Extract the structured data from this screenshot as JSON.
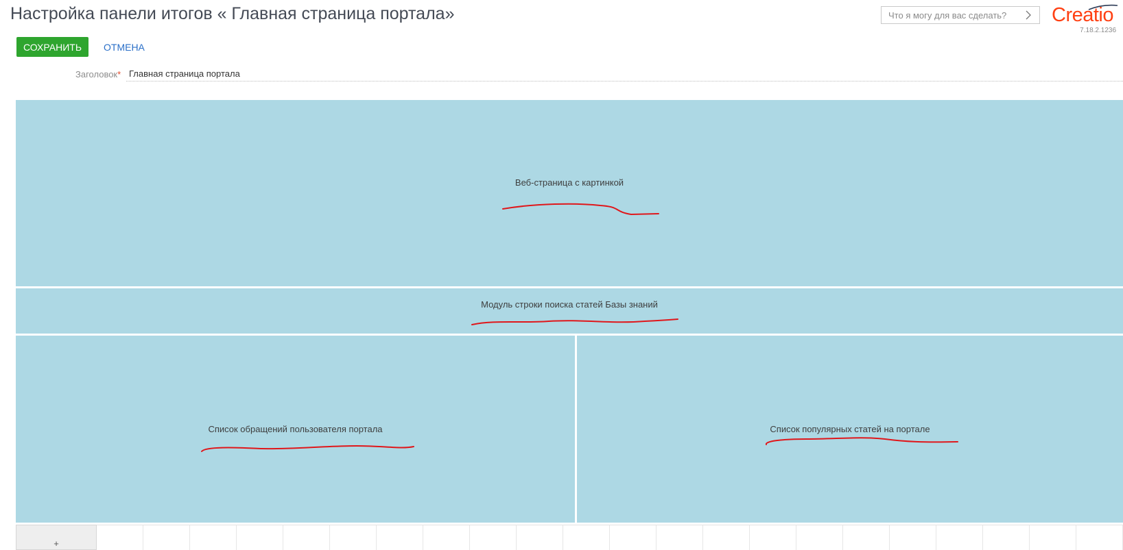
{
  "header": {
    "title": "Настройка панели итогов « Главная страница портала»",
    "assistant_placeholder": "Что я могу для вас сделать?",
    "logo_text": "Creatio",
    "version": "7.18.2.1236"
  },
  "actions": {
    "save_label": "СОХРАНИТЬ",
    "cancel_label": "ОТМЕНА"
  },
  "form": {
    "caption_label": "Заголовок",
    "required_mark": "*",
    "caption_value": "Главная страница портала"
  },
  "widgets": [
    {
      "label": "Веб-страница с картинкой"
    },
    {
      "label": "Модуль строки поиска статей Базы знаний"
    },
    {
      "label": "Список обращений пользователя портала"
    },
    {
      "label": "Список популярных статей на портале"
    }
  ],
  "grid": {
    "add_label": "+"
  },
  "colors": {
    "widget_bg": "#add8e4",
    "save_button": "#2ea52e",
    "link": "#2a6fc8",
    "logo": "#ff4013",
    "annotation": "#e0161a"
  },
  "icons": [
    "chevron-right-icon",
    "logo-swoosh-icon"
  ]
}
